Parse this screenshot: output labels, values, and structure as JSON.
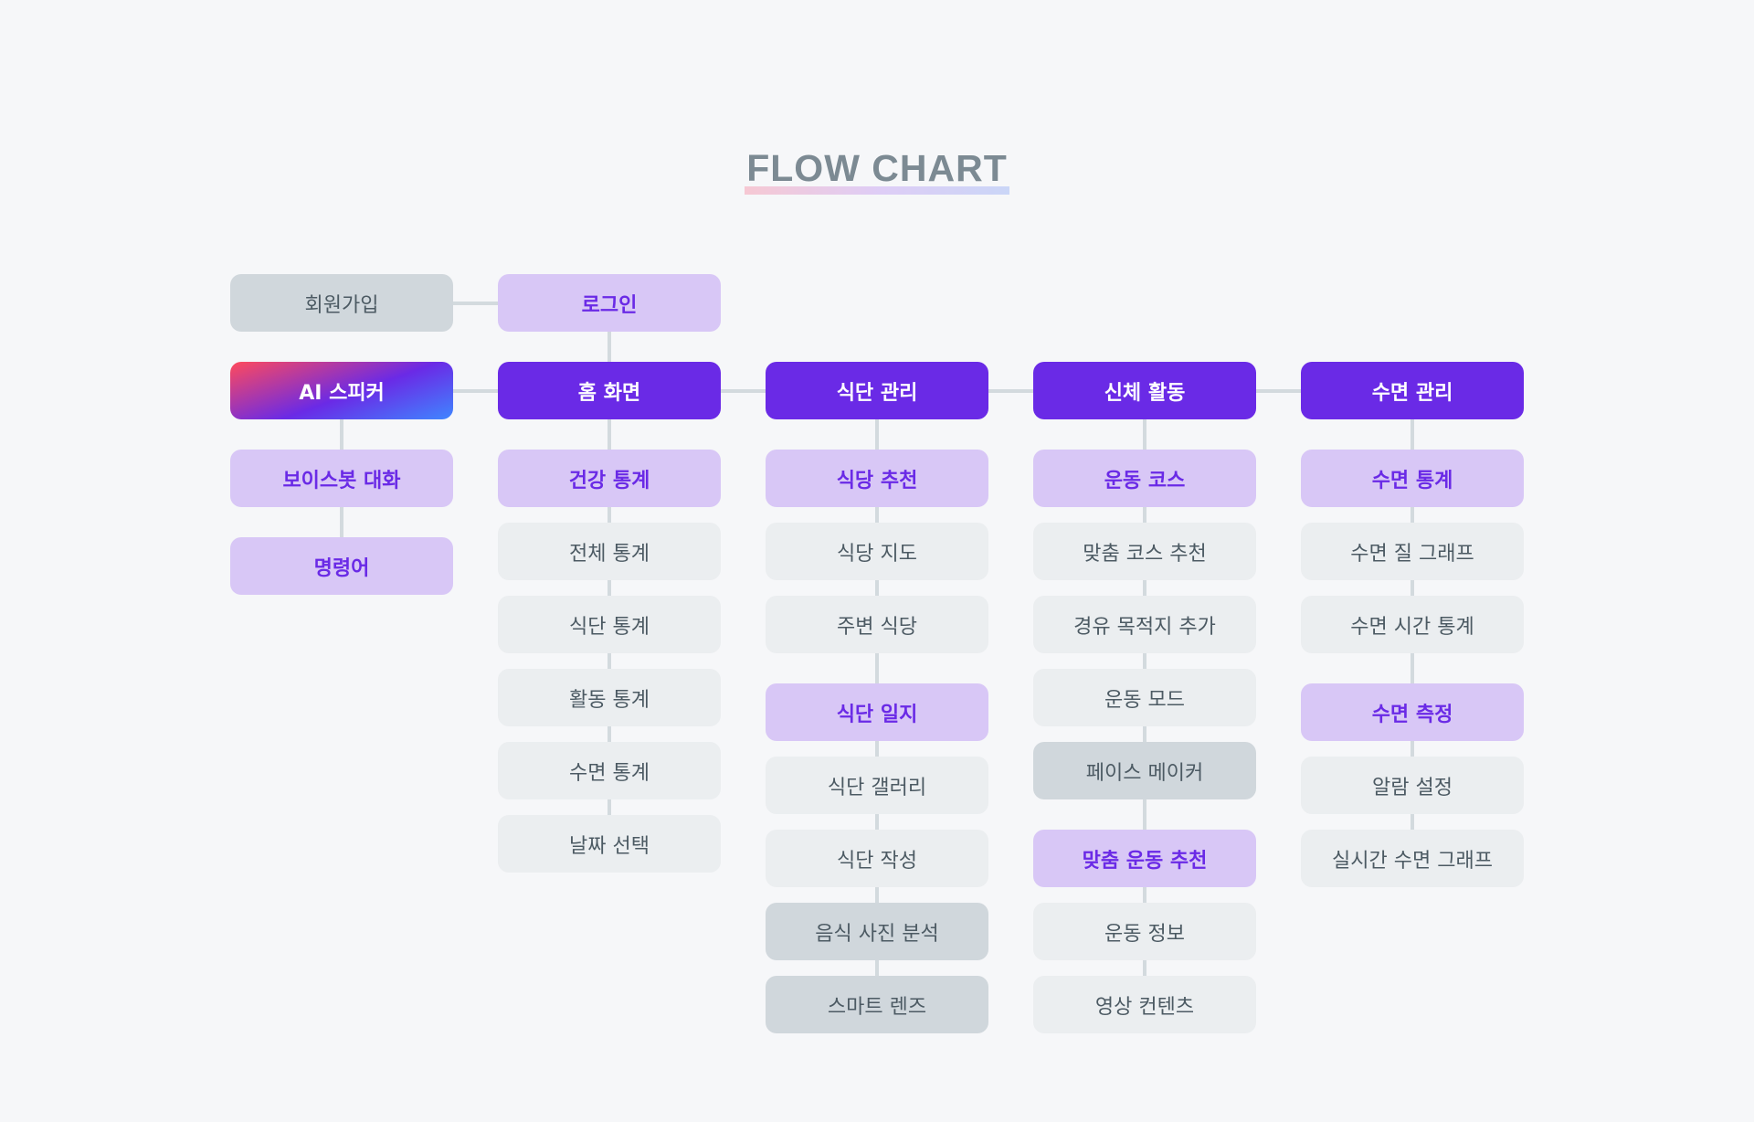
{
  "title": "FLOW CHART",
  "nodes": [
    {
      "id": "signup",
      "label": "회원가입",
      "style": "dark",
      "col": 0,
      "row": 0
    },
    {
      "id": "login",
      "label": "로그인",
      "style": "secondary",
      "col": 1,
      "row": 0
    },
    {
      "id": "ai-speaker",
      "label": "AI 스피커",
      "style": "gradient",
      "col": 0,
      "row": 1
    },
    {
      "id": "home",
      "label": "홈 화면",
      "style": "primary",
      "col": 1,
      "row": 1
    },
    {
      "id": "diet",
      "label": "식단 관리",
      "style": "primary",
      "col": 2,
      "row": 1
    },
    {
      "id": "body",
      "label": "신체 활동",
      "style": "primary",
      "col": 3,
      "row": 1
    },
    {
      "id": "sleep",
      "label": "수면 관리",
      "style": "primary",
      "col": 4,
      "row": 1
    },
    {
      "id": "voicebot",
      "label": "보이스봇 대화",
      "style": "secondary",
      "col": 0,
      "row": 2
    },
    {
      "id": "commands",
      "label": "명령어",
      "style": "secondary",
      "col": 0,
      "row": 3
    },
    {
      "id": "health-stats",
      "label": "건강 통계",
      "style": "secondary",
      "col": 1,
      "row": 2
    },
    {
      "id": "total-stats",
      "label": "전체 통계",
      "style": "neutral",
      "col": 1,
      "row": 3
    },
    {
      "id": "diet-stats",
      "label": "식단 통계",
      "style": "neutral",
      "col": 1,
      "row": 4
    },
    {
      "id": "activity-stats",
      "label": "활동 통계",
      "style": "neutral",
      "col": 1,
      "row": 5
    },
    {
      "id": "sleep-stats-home",
      "label": "수면 통계",
      "style": "neutral",
      "col": 1,
      "row": 6
    },
    {
      "id": "date-select",
      "label": "날짜 선택",
      "style": "neutral",
      "col": 1,
      "row": 7
    },
    {
      "id": "restaurant-rec",
      "label": "식당 추천",
      "style": "secondary",
      "col": 2,
      "row": 2
    },
    {
      "id": "restaurant-map",
      "label": "식당 지도",
      "style": "neutral",
      "col": 2,
      "row": 3
    },
    {
      "id": "nearby",
      "label": "주변 식당",
      "style": "neutral",
      "col": 2,
      "row": 4
    },
    {
      "id": "diet-log",
      "label": "식단 일지",
      "style": "secondary",
      "col": 2,
      "row": 5
    },
    {
      "id": "diet-gallery",
      "label": "식단 갤러리",
      "style": "neutral",
      "col": 2,
      "row": 6
    },
    {
      "id": "diet-write",
      "label": "식단 작성",
      "style": "neutral",
      "col": 2,
      "row": 7
    },
    {
      "id": "food-photo",
      "label": "음식 사진 분석",
      "style": "dark",
      "col": 2,
      "row": 8
    },
    {
      "id": "smart-lens",
      "label": "스마트 렌즈",
      "style": "dark",
      "col": 2,
      "row": 9
    },
    {
      "id": "workout-course",
      "label": "운동 코스",
      "style": "secondary",
      "col": 3,
      "row": 2
    },
    {
      "id": "custom-course",
      "label": "맞춤 코스 추천",
      "style": "neutral",
      "col": 3,
      "row": 3
    },
    {
      "id": "waypoint",
      "label": "경유 목적지 추가",
      "style": "neutral",
      "col": 3,
      "row": 4
    },
    {
      "id": "workout-mode",
      "label": "운동 모드",
      "style": "neutral",
      "col": 3,
      "row": 5
    },
    {
      "id": "pacemaker",
      "label": "페이스 메이커",
      "style": "dark",
      "col": 3,
      "row": 6
    },
    {
      "id": "custom-workout",
      "label": "맞춤 운동 추천",
      "style": "secondary",
      "col": 3,
      "row": 7
    },
    {
      "id": "workout-info",
      "label": "운동 정보",
      "style": "neutral",
      "col": 3,
      "row": 8
    },
    {
      "id": "video",
      "label": "영상 컨텐츠",
      "style": "neutral",
      "col": 3,
      "row": 9
    },
    {
      "id": "sleep-stats",
      "label": "수면 통계",
      "style": "secondary",
      "col": 4,
      "row": 2
    },
    {
      "id": "sleep-quality",
      "label": "수면 질 그래프",
      "style": "neutral",
      "col": 4,
      "row": 3
    },
    {
      "id": "sleep-time",
      "label": "수면 시간 통계",
      "style": "neutral",
      "col": 4,
      "row": 4
    },
    {
      "id": "sleep-measure",
      "label": "수면 측정",
      "style": "secondary",
      "col": 4,
      "row": 5
    },
    {
      "id": "alarm",
      "label": "알람 설정",
      "style": "neutral",
      "col": 4,
      "row": 6
    },
    {
      "id": "realtime-graph",
      "label": "실시간 수면 그래프",
      "style": "neutral",
      "col": 4,
      "row": 7
    }
  ],
  "edges": [
    [
      "signup",
      "login"
    ],
    [
      "login",
      "home"
    ],
    [
      "ai-speaker",
      "home"
    ],
    [
      "home",
      "diet"
    ],
    [
      "diet",
      "body"
    ],
    [
      "body",
      "sleep"
    ],
    [
      "ai-speaker",
      "voicebot"
    ],
    [
      "voicebot",
      "commands"
    ],
    [
      "home",
      "health-stats"
    ],
    [
      "health-stats",
      "total-stats"
    ],
    [
      "total-stats",
      "diet-stats"
    ],
    [
      "diet-stats",
      "activity-stats"
    ],
    [
      "activity-stats",
      "sleep-stats-home"
    ],
    [
      "sleep-stats-home",
      "date-select"
    ],
    [
      "diet",
      "restaurant-rec"
    ],
    [
      "restaurant-rec",
      "restaurant-map"
    ],
    [
      "restaurant-map",
      "nearby"
    ],
    [
      "nearby",
      "diet-log"
    ],
    [
      "diet-log",
      "diet-gallery"
    ],
    [
      "diet-gallery",
      "diet-write"
    ],
    [
      "diet-write",
      "food-photo"
    ],
    [
      "food-photo",
      "smart-lens"
    ],
    [
      "body",
      "workout-course"
    ],
    [
      "workout-course",
      "custom-course"
    ],
    [
      "custom-course",
      "waypoint"
    ],
    [
      "waypoint",
      "workout-mode"
    ],
    [
      "workout-mode",
      "pacemaker"
    ],
    [
      "pacemaker",
      "custom-workout"
    ],
    [
      "custom-workout",
      "workout-info"
    ],
    [
      "workout-info",
      "video"
    ],
    [
      "sleep",
      "sleep-stats"
    ],
    [
      "sleep-stats",
      "sleep-quality"
    ],
    [
      "sleep-quality",
      "sleep-time"
    ],
    [
      "sleep-time",
      "sleep-measure"
    ],
    [
      "sleep-measure",
      "alarm"
    ],
    [
      "alarm",
      "realtime-graph"
    ]
  ]
}
